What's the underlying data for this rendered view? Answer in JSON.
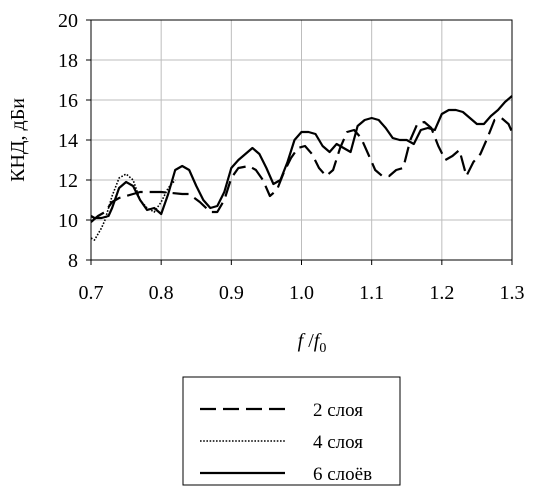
{
  "chart_data": {
    "type": "line",
    "title": "",
    "ylabel": "КНД, дБи",
    "xlabel": {
      "base": "f",
      "sep": " /",
      "sub_base": "f",
      "sub": "0"
    },
    "xlim": [
      0.7,
      1.3
    ],
    "ylim": [
      8,
      20
    ],
    "xticks": [
      "0.7",
      "0.8",
      "0.9",
      "1.0",
      "1.1",
      "1.2",
      "1.3"
    ],
    "xtick_values": [
      0.7,
      0.8,
      0.9,
      1.0,
      1.1,
      1.2,
      1.3
    ],
    "yticks": [
      "8",
      "10",
      "12",
      "14",
      "16",
      "18",
      "20"
    ],
    "ytick_values": [
      8,
      10,
      12,
      14,
      16,
      18,
      20
    ],
    "grid": true,
    "legend_position": "bottom-center",
    "series": [
      {
        "name": "2 слоя",
        "dash": "dashed",
        "x": [
          0.7,
          0.71,
          0.72,
          0.73,
          0.74,
          0.75,
          0.76,
          0.77,
          0.8,
          0.83,
          0.84,
          0.855,
          0.87,
          0.88,
          0.89,
          0.9,
          0.91,
          0.925,
          0.935,
          0.945,
          0.955,
          0.965,
          0.975,
          0.985,
          0.995,
          1.005,
          1.015,
          1.025,
          1.035,
          1.045,
          1.055,
          1.065,
          1.075,
          1.085,
          1.095,
          1.105,
          1.115,
          1.125,
          1.135,
          1.145,
          1.155,
          1.165,
          1.175,
          1.185,
          1.195,
          1.205,
          1.215,
          1.225,
          1.235,
          1.245,
          1.255,
          1.265,
          1.275,
          1.285,
          1.295,
          1.3
        ],
        "y": [
          9.9,
          10.2,
          10.4,
          10.9,
          11.1,
          11.2,
          11.3,
          11.4,
          11.4,
          11.3,
          11.3,
          10.9,
          10.4,
          10.4,
          11.0,
          12.1,
          12.6,
          12.7,
          12.5,
          12.0,
          11.2,
          11.5,
          12.4,
          13.1,
          13.6,
          13.7,
          13.3,
          12.6,
          12.2,
          12.5,
          13.6,
          14.4,
          14.5,
          14.1,
          13.3,
          12.5,
          12.2,
          12.2,
          12.5,
          12.6,
          14.0,
          14.8,
          14.9,
          14.6,
          13.7,
          13.0,
          13.2,
          13.5,
          12.2,
          12.9,
          13.3,
          14.1,
          15.0,
          15.1,
          14.8,
          14.4
        ]
      },
      {
        "name": "4 слоя",
        "dash": "dotted",
        "x": [
          0.7,
          0.705,
          0.71,
          0.715,
          0.72,
          0.73,
          0.74,
          0.75,
          0.76,
          0.77,
          0.78,
          0.79,
          0.8,
          0.81,
          0.82
        ],
        "y": [
          9.1,
          9.0,
          9.3,
          9.6,
          10.0,
          11.2,
          12.1,
          12.3,
          12.0,
          11.0,
          10.6,
          10.4,
          10.9,
          11.6,
          12.0
        ]
      },
      {
        "name": "6 слоёв",
        "dash": "solid",
        "x": [
          0.7,
          0.705,
          0.715,
          0.725,
          0.73,
          0.74,
          0.75,
          0.76,
          0.77,
          0.78,
          0.79,
          0.8,
          0.81,
          0.82,
          0.83,
          0.84,
          0.85,
          0.86,
          0.87,
          0.88,
          0.89,
          0.9,
          0.91,
          0.92,
          0.93,
          0.94,
          0.95,
          0.96,
          0.97,
          0.98,
          0.99,
          1.0,
          1.01,
          1.02,
          1.03,
          1.04,
          1.05,
          1.06,
          1.07,
          1.08,
          1.09,
          1.1,
          1.11,
          1.12,
          1.13,
          1.14,
          1.15,
          1.16,
          1.17,
          1.18,
          1.19,
          1.2,
          1.21,
          1.22,
          1.23,
          1.24,
          1.25,
          1.26,
          1.27,
          1.28,
          1.29,
          1.3
        ],
        "y": [
          10.2,
          10.1,
          10.1,
          10.2,
          10.6,
          11.6,
          11.9,
          11.7,
          11.0,
          10.5,
          10.6,
          10.3,
          11.3,
          12.5,
          12.7,
          12.5,
          11.7,
          11.0,
          10.6,
          10.7,
          11.4,
          12.6,
          13.0,
          13.3,
          13.6,
          13.3,
          12.6,
          11.8,
          12.0,
          12.9,
          14.0,
          14.4,
          14.4,
          14.3,
          13.7,
          13.4,
          13.8,
          13.6,
          13.4,
          14.7,
          15.0,
          15.1,
          15.0,
          14.6,
          14.1,
          14.0,
          14.0,
          13.8,
          14.5,
          14.6,
          14.5,
          15.3,
          15.5,
          15.5,
          15.4,
          15.1,
          14.8,
          14.8,
          15.2,
          15.5,
          15.9,
          16.2
        ]
      }
    ]
  }
}
